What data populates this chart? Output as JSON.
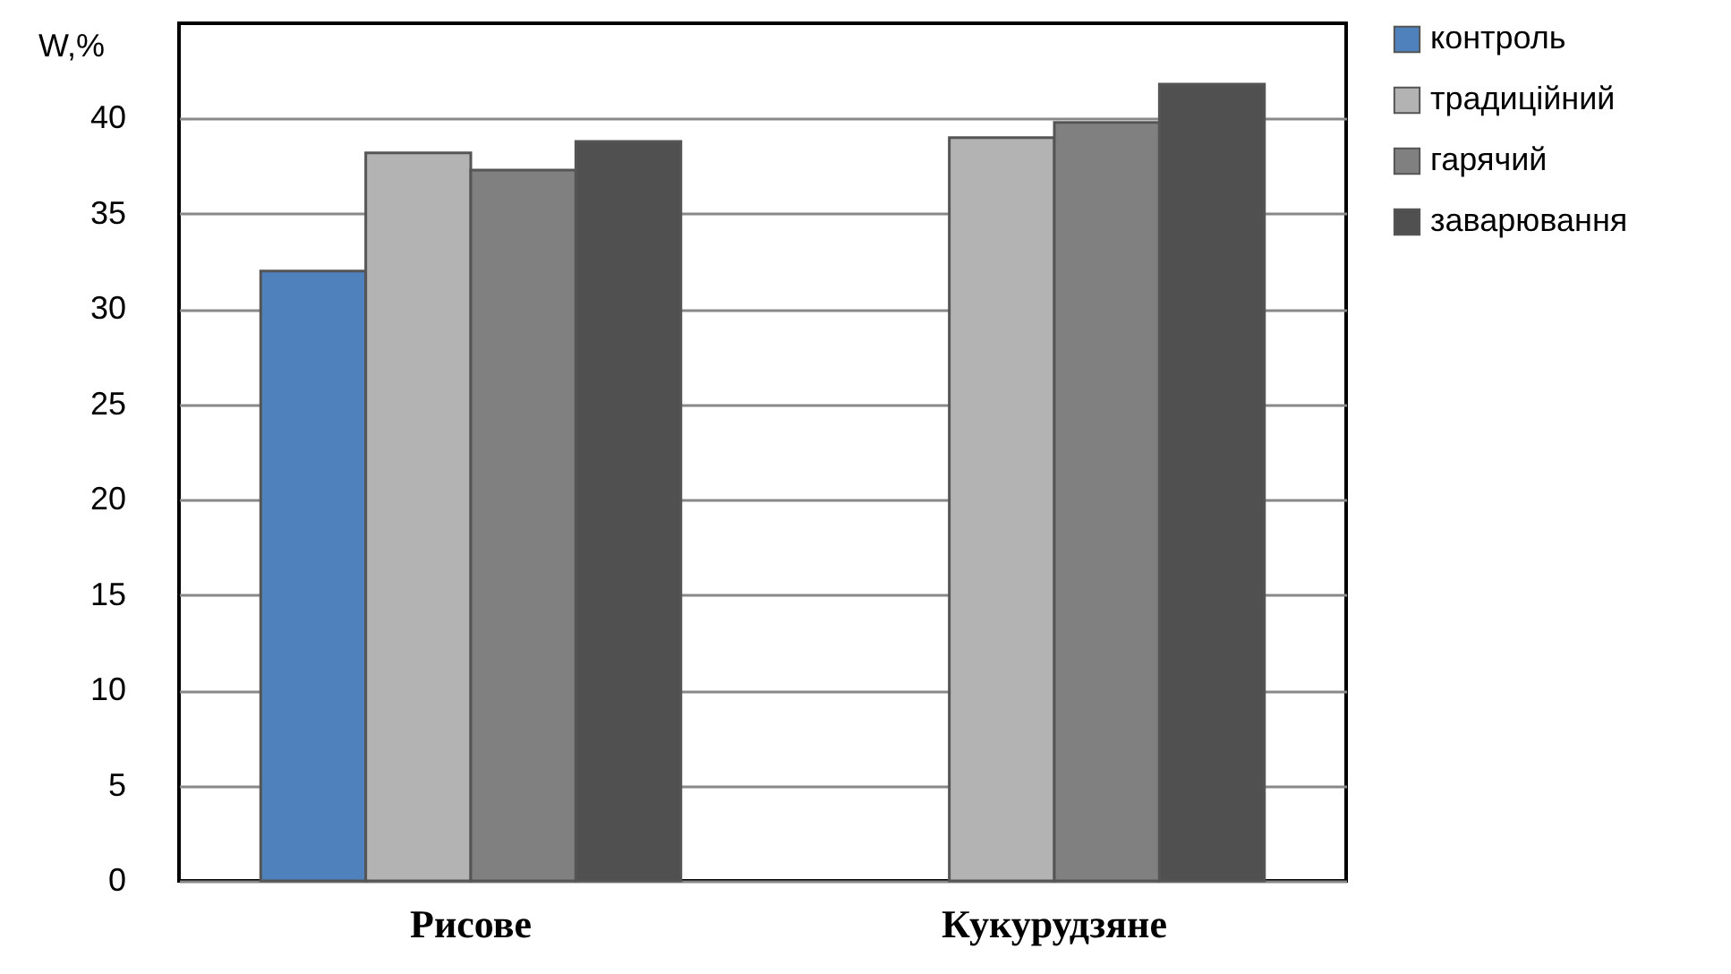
{
  "chart_data": {
    "type": "bar",
    "ylabel": "W,%",
    "categories": [
      "Рисове",
      "Кукурудзяне"
    ],
    "series": [
      {
        "name": "контроль",
        "color": "#4f81bd",
        "values": [
          32.0,
          null
        ]
      },
      {
        "name": "традиційний",
        "color": "#b3b3b3",
        "values": [
          38.2,
          39.0
        ]
      },
      {
        "name": "гарячий",
        "color": "#808080",
        "values": [
          37.3,
          39.8
        ]
      },
      {
        "name": "заварювання",
        "color": "#505050",
        "values": [
          38.8,
          41.8
        ]
      }
    ],
    "ylim": [
      0,
      45
    ],
    "yticks": [
      0,
      5,
      10,
      15,
      20,
      25,
      30,
      35,
      40
    ],
    "grid": "y",
    "legend": "right"
  }
}
